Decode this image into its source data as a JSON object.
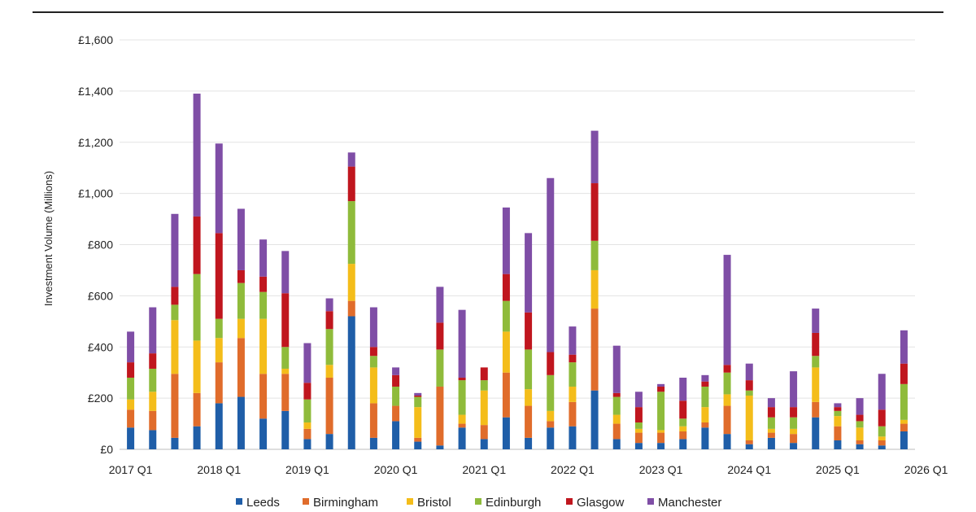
{
  "chart_data": {
    "type": "bar",
    "stacked": true,
    "title": "",
    "xlabel": "",
    "ylabel": "Investment Volume (Millions)",
    "ylim": [
      0,
      1600
    ],
    "y_ticks": [
      "£0",
      "£200",
      "£400",
      "£600",
      "£800",
      "£1,000",
      "£1,200",
      "£1,400",
      "£1,600"
    ],
    "y_tick_values": [
      0,
      200,
      400,
      600,
      800,
      1000,
      1200,
      1400,
      1600
    ],
    "x_tick_labels": [
      "2017 Q1",
      "2018 Q1",
      "2019 Q1",
      "2020 Q1",
      "2021 Q1",
      "2022 Q1",
      "2023 Q1",
      "2024 Q1",
      "2025 Q1",
      "2026 Q1"
    ],
    "x_tick_every": 4,
    "grid": true,
    "legend_position": "bottom",
    "series": [
      {
        "name": "Leeds",
        "color": "#1f5ea8",
        "values": [
          85,
          75,
          45,
          90,
          180,
          205,
          120,
          150,
          40,
          60,
          520,
          45,
          110,
          30,
          15,
          85,
          40,
          125,
          45,
          85,
          90,
          230,
          40,
          25,
          25,
          40,
          85,
          60,
          20,
          45,
          25,
          125,
          35,
          20,
          15,
          70
        ]
      },
      {
        "name": "Birmingham",
        "color": "#e06c2b",
        "values": [
          70,
          75,
          250,
          130,
          160,
          230,
          175,
          145,
          40,
          220,
          60,
          135,
          60,
          15,
          230,
          15,
          55,
          175,
          125,
          25,
          95,
          320,
          60,
          40,
          40,
          30,
          20,
          110,
          15,
          20,
          35,
          60,
          55,
          15,
          20,
          30
        ]
      },
      {
        "name": "Bristol",
        "color": "#f4bd1a",
        "values": [
          40,
          75,
          210,
          205,
          95,
          75,
          215,
          20,
          25,
          50,
          145,
          140,
          0,
          120,
          0,
          35,
          135,
          160,
          65,
          40,
          60,
          150,
          35,
          15,
          10,
          20,
          60,
          45,
          175,
          15,
          20,
          135,
          40,
          50,
          15,
          15
        ]
      },
      {
        "name": "Edinburgh",
        "color": "#8fbb3b",
        "values": [
          85,
          90,
          60,
          260,
          75,
          140,
          105,
          85,
          90,
          140,
          245,
          45,
          75,
          40,
          145,
          135,
          40,
          120,
          155,
          140,
          95,
          115,
          70,
          25,
          150,
          30,
          80,
          85,
          20,
          45,
          45,
          45,
          20,
          25,
          40,
          140
        ]
      },
      {
        "name": "Glasgow",
        "color": "#c0161e",
        "values": [
          60,
          60,
          70,
          225,
          335,
          50,
          60,
          210,
          65,
          70,
          135,
          35,
          45,
          5,
          105,
          10,
          50,
          105,
          145,
          90,
          30,
          225,
          15,
          60,
          20,
          70,
          20,
          30,
          40,
          40,
          40,
          90,
          15,
          25,
          65,
          80
        ]
      },
      {
        "name": "Manchester",
        "color": "#7f4ea6",
        "values": [
          120,
          180,
          285,
          480,
          350,
          240,
          145,
          165,
          155,
          50,
          55,
          155,
          30,
          10,
          140,
          265,
          0,
          260,
          310,
          680,
          110,
          205,
          185,
          60,
          10,
          90,
          25,
          430,
          65,
          35,
          140,
          95,
          15,
          65,
          140,
          130
        ]
      }
    ]
  }
}
